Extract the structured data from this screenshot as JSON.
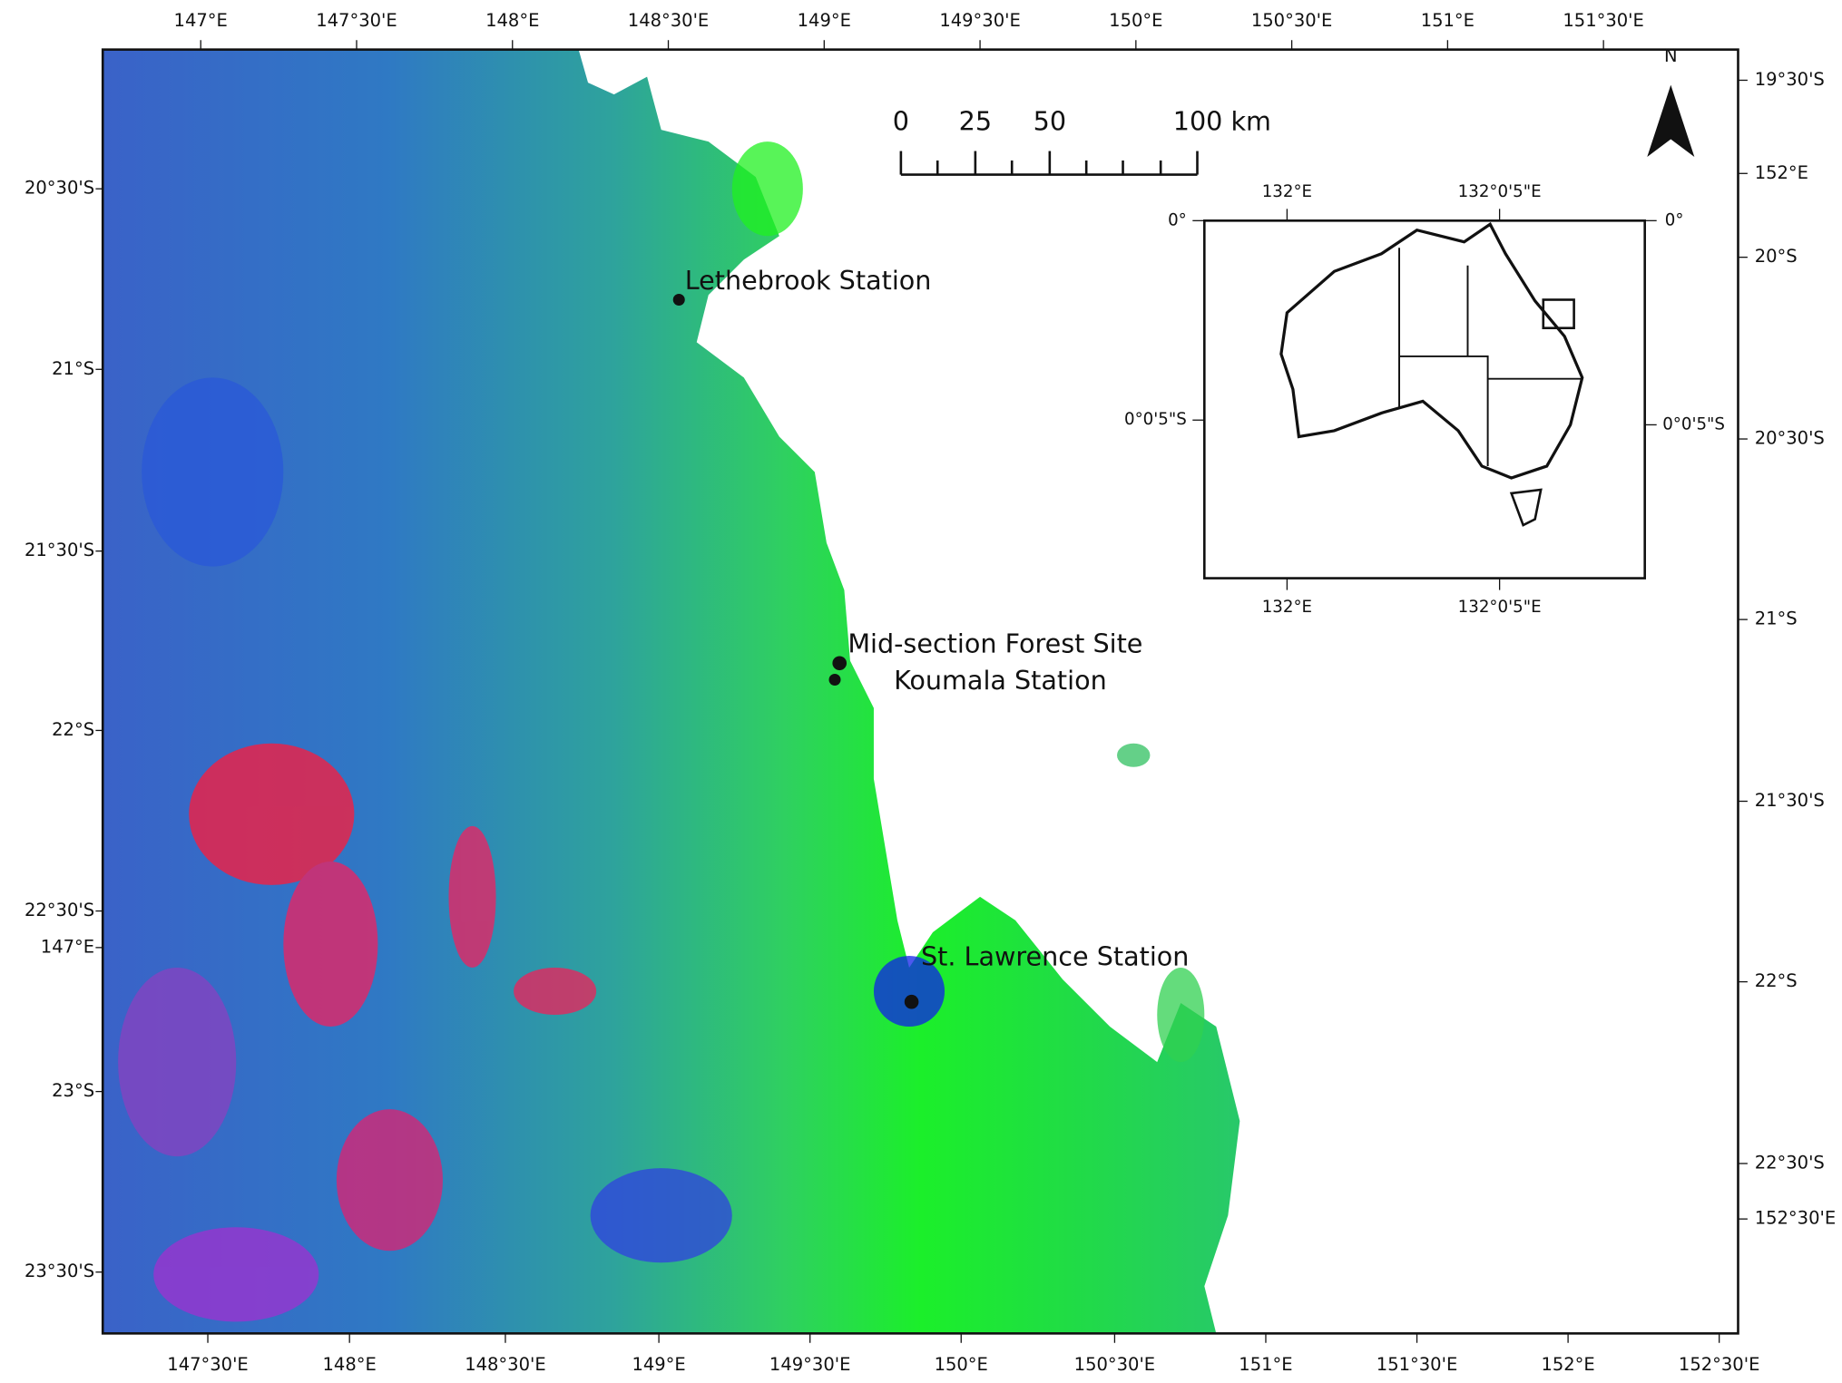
{
  "map": {
    "top_axis_labels": [
      "147°E",
      "147°30'E",
      "148°E",
      "148°30'E",
      "149°E",
      "149°30'E",
      "150°E",
      "150°30'E",
      "151°E",
      "151°30'E"
    ],
    "bottom_axis_labels": [
      "147°30'E",
      "148°E",
      "148°30'E",
      "149°E",
      "149°30'E",
      "150°E",
      "150°30'E",
      "151°E",
      "151°30'E",
      "152°E",
      "152°30'E"
    ],
    "left_axis_labels": [
      "20°30'S",
      "21°S",
      "21°30'S",
      "22°S",
      "22°30'S",
      "147°E",
      "23°S",
      "23°30'S"
    ],
    "right_axis_labels": [
      "19°30'S",
      "152°E",
      "20°S",
      "20°30'S",
      "21°S",
      "21°30'S",
      "22°S",
      "22°30'S",
      "152°30'E"
    ],
    "scale_bar": {
      "labels": [
        0,
        25,
        50,
        "100 km"
      ]
    },
    "north_label": "N",
    "stations": [
      "Lethebrook Station",
      "Mid-section Forest Site",
      "Koumala Station",
      "St. Lawrence Station"
    ],
    "inset": {
      "top_labels": [
        "132°E",
        "132°0'5\"E"
      ],
      "bottom_labels": [
        "132°E",
        "132°0'5\"E"
      ],
      "left_labels": [
        "0°",
        "0°0'5\"S"
      ],
      "right_labels": [
        "0°",
        "0°0'5\"S"
      ]
    }
  }
}
